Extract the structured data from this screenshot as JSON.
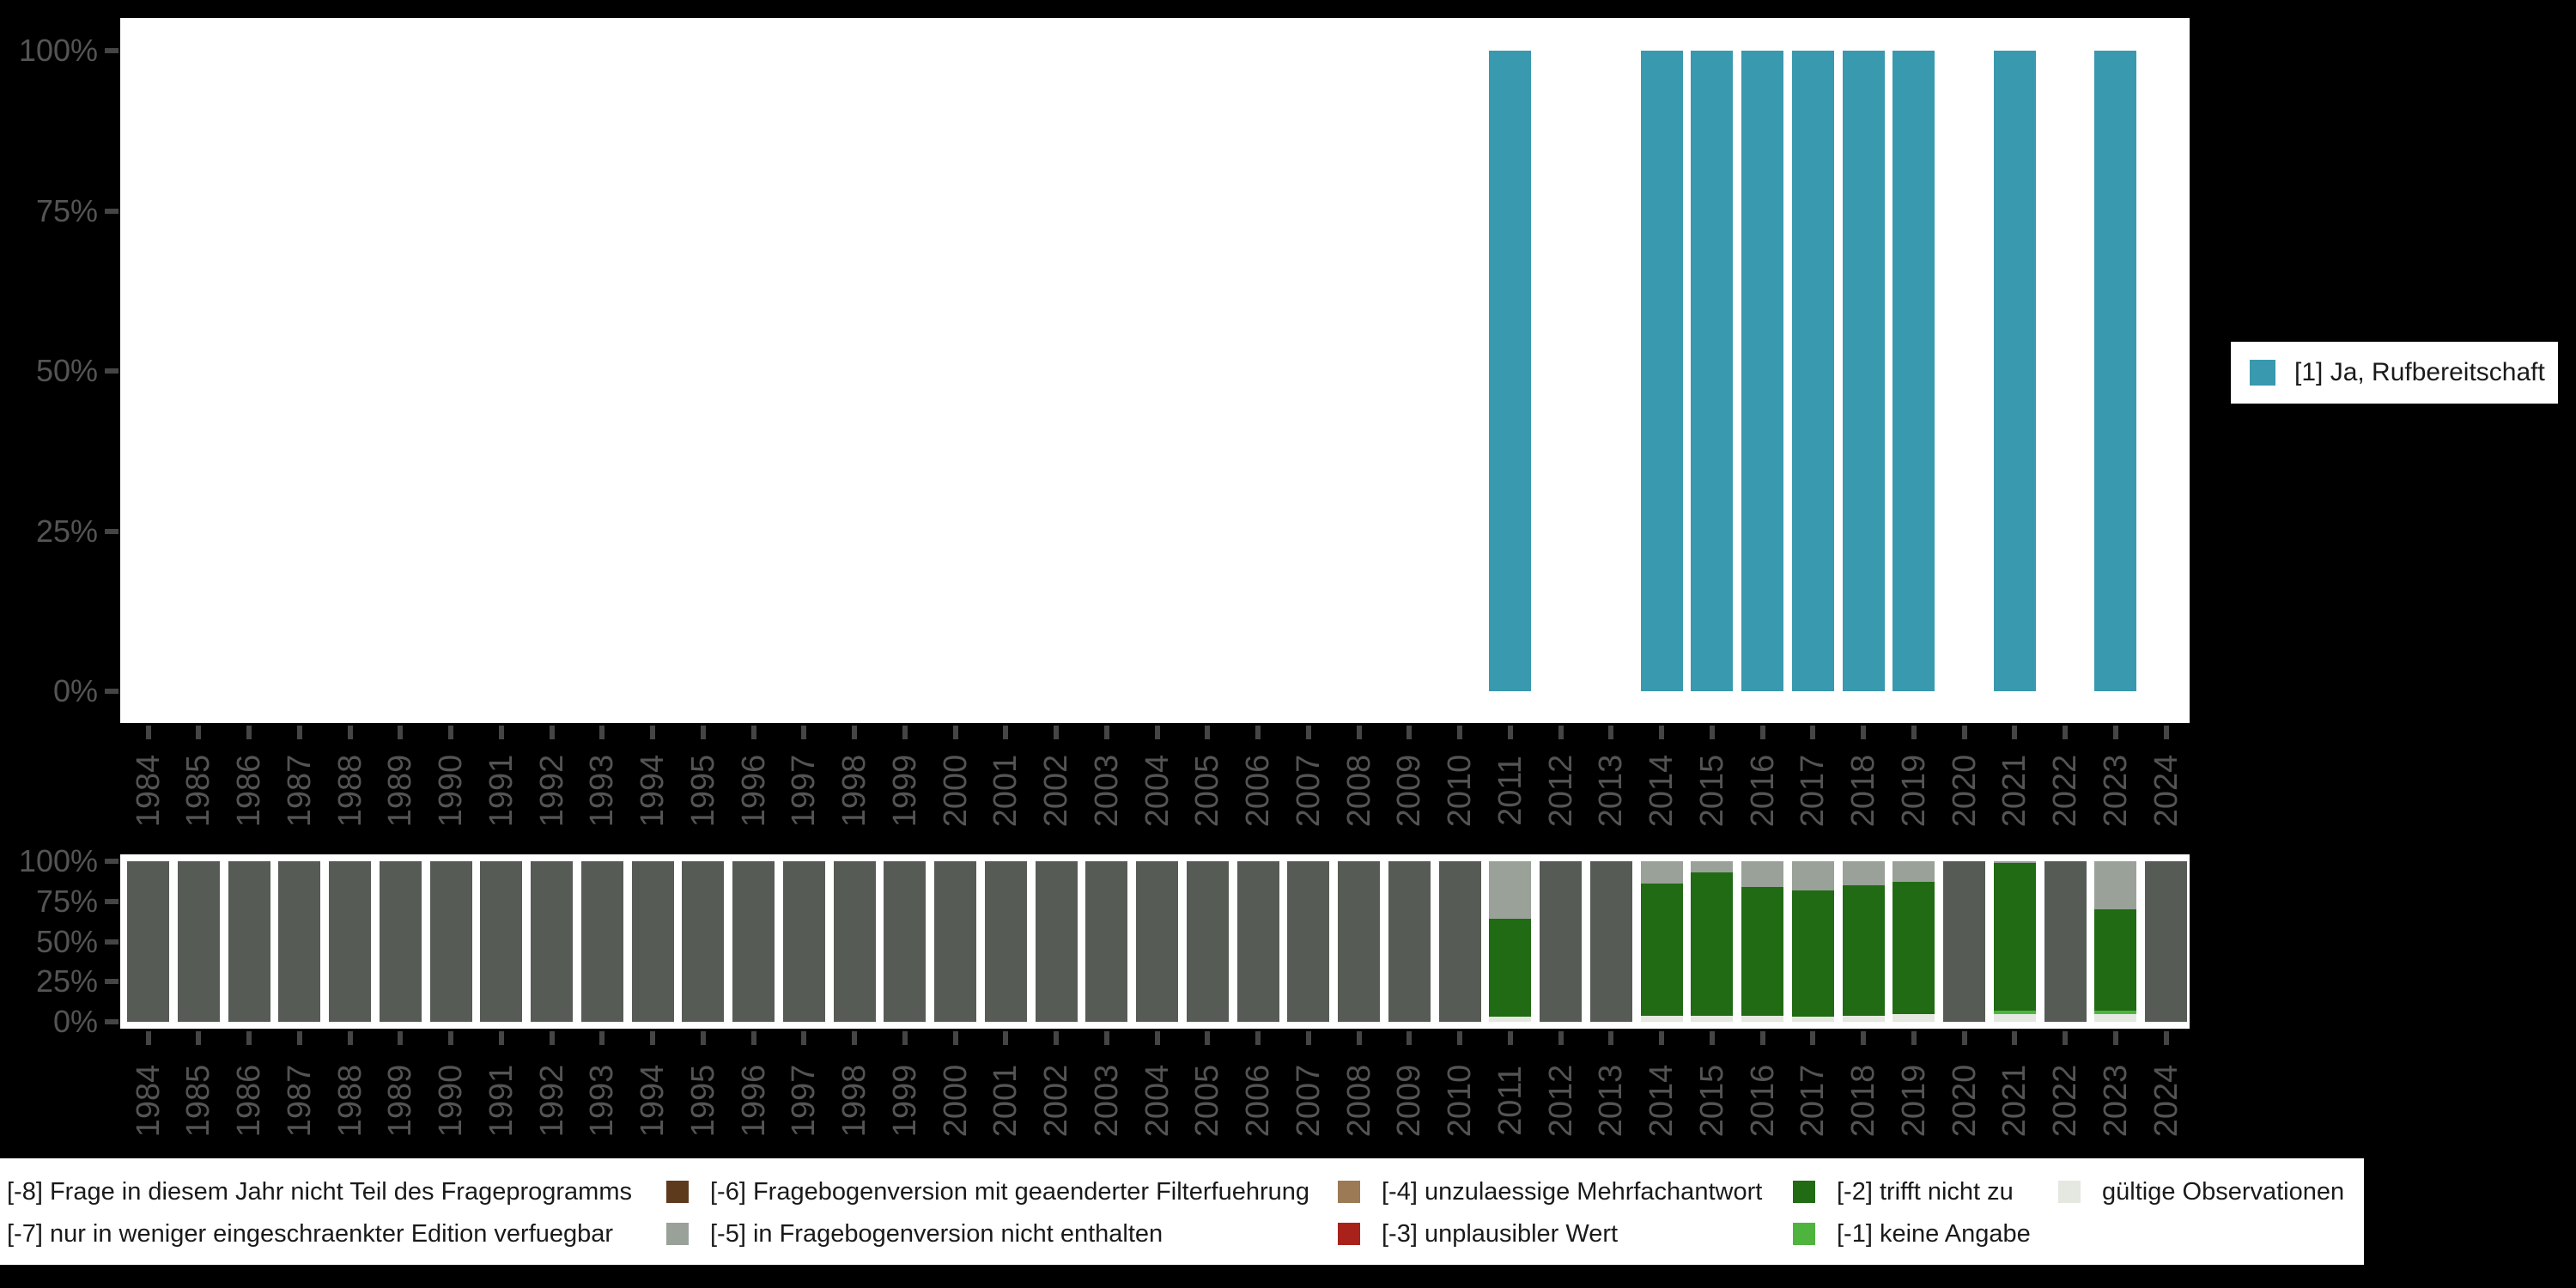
{
  "colors": {
    "background": "#000000",
    "plot_background": "#ffffff",
    "axis_text": "#545454",
    "tick": "#454545",
    "legend_text": "#1a1a1a",
    "answer_teal": "#3999ae",
    "m8_dark_gray": "#565c55",
    "m7_gray": "#99a199",
    "m6_dark_brown": "#5e3a1d",
    "m5_gray": "#99a199",
    "m4_tan": "#9b7a55",
    "m3_red": "#a8221b",
    "m2_dark_green": "#206b13",
    "m1_green": "#4fb43e",
    "valid_light": "#e4e8e1"
  },
  "years": [
    "1984",
    "1985",
    "1986",
    "1987",
    "1988",
    "1989",
    "1990",
    "1991",
    "1992",
    "1993",
    "1994",
    "1995",
    "1996",
    "1997",
    "1998",
    "1999",
    "2000",
    "2001",
    "2002",
    "2003",
    "2004",
    "2005",
    "2006",
    "2007",
    "2008",
    "2009",
    "2010",
    "2011",
    "2012",
    "2013",
    "2014",
    "2015",
    "2016",
    "2017",
    "2018",
    "2019",
    "2020",
    "2021",
    "2022",
    "2023",
    "2024"
  ],
  "top_chart": {
    "legend_label": "[1] Ja, Rufbereitschaft",
    "y_ticks": [
      "100%",
      "75%",
      "50%",
      "25%",
      "0%"
    ]
  },
  "bottom_chart": {
    "y_ticks": [
      "100%",
      "75%",
      "50%",
      "25%",
      "0%"
    ]
  },
  "missing_legend": {
    "items": [
      {
        "row": 0,
        "col": 0,
        "label": "[-8] Frage in diesem Jahr nicht Teil des Frageprogramms",
        "color": "#565c55",
        "swatch_visible": false
      },
      {
        "row": 1,
        "col": 0,
        "label": "[-7] nur in weniger eingeschraenkter Edition verfuegbar",
        "color": "#99a199",
        "swatch_visible": false
      },
      {
        "row": 0,
        "col": 1,
        "label": "[-6] Fragebogenversion mit geaenderter Filterfuehrung",
        "color": "#5e3a1d",
        "swatch_visible": true
      },
      {
        "row": 1,
        "col": 1,
        "label": "[-5] in Fragebogenversion nicht enthalten",
        "color": "#99a199",
        "swatch_visible": true
      },
      {
        "row": 0,
        "col": 2,
        "label": "[-4] unzulaessige Mehrfachantwort",
        "color": "#9b7a55",
        "swatch_visible": true
      },
      {
        "row": 1,
        "col": 2,
        "label": "[-3] unplausibler Wert",
        "color": "#a8221b",
        "swatch_visible": true
      },
      {
        "row": 0,
        "col": 3,
        "label": "[-2] trifft nicht zu",
        "color": "#206b13",
        "swatch_visible": true
      },
      {
        "row": 1,
        "col": 3,
        "label": "[-1] keine Angabe",
        "color": "#4fb43e",
        "swatch_visible": true
      },
      {
        "row": 0,
        "col": 4,
        "label": "gültige Observationen",
        "color": "#e4e8e1",
        "swatch_visible": true
      }
    ]
  },
  "chart_data": [
    {
      "type": "bar",
      "title": "",
      "xlabel": "",
      "ylabel": "",
      "ylim": [
        0,
        100
      ],
      "unit": "percent",
      "y_tick_labels": [
        "100%",
        "75%",
        "50%",
        "25%",
        "0%"
      ],
      "y_tick_values": [
        100,
        75,
        50,
        25,
        0
      ],
      "legend_position": "right",
      "grid": false,
      "categories": [
        "1984",
        "1985",
        "1986",
        "1987",
        "1988",
        "1989",
        "1990",
        "1991",
        "1992",
        "1993",
        "1994",
        "1995",
        "1996",
        "1997",
        "1998",
        "1999",
        "2000",
        "2001",
        "2002",
        "2003",
        "2004",
        "2005",
        "2006",
        "2007",
        "2008",
        "2009",
        "2010",
        "2011",
        "2012",
        "2013",
        "2014",
        "2015",
        "2016",
        "2017",
        "2018",
        "2019",
        "2020",
        "2021",
        "2022",
        "2023",
        "2024"
      ],
      "series": [
        {
          "name": "[1] Ja, Rufbereitschaft",
          "color": "#3999ae",
          "values": [
            0,
            0,
            0,
            0,
            0,
            0,
            0,
            0,
            0,
            0,
            0,
            0,
            0,
            0,
            0,
            0,
            0,
            0,
            0,
            0,
            0,
            0,
            0,
            0,
            0,
            0,
            0,
            100,
            0,
            0,
            100,
            100,
            100,
            100,
            100,
            100,
            0,
            100,
            0,
            100,
            0
          ]
        }
      ]
    },
    {
      "type": "bar",
      "title": "",
      "xlabel": "",
      "ylabel": "",
      "ylim": [
        0,
        100
      ],
      "unit": "percent",
      "stacked": true,
      "y_tick_labels": [
        "100%",
        "75%",
        "50%",
        "25%",
        "0%"
      ],
      "y_tick_values": [
        100,
        75,
        50,
        25,
        0
      ],
      "legend_position": "bottom",
      "grid": false,
      "categories": [
        "1984",
        "1985",
        "1986",
        "1987",
        "1988",
        "1989",
        "1990",
        "1991",
        "1992",
        "1993",
        "1994",
        "1995",
        "1996",
        "1997",
        "1998",
        "1999",
        "2000",
        "2001",
        "2002",
        "2003",
        "2004",
        "2005",
        "2006",
        "2007",
        "2008",
        "2009",
        "2010",
        "2011",
        "2012",
        "2013",
        "2014",
        "2015",
        "2016",
        "2017",
        "2018",
        "2019",
        "2020",
        "2021",
        "2022",
        "2023",
        "2024"
      ],
      "series": [
        {
          "name": "gültige Observationen",
          "color": "#e4e8e1",
          "values": [
            0,
            0,
            0,
            0,
            0,
            0,
            0,
            0,
            0,
            0,
            0,
            0,
            0,
            0,
            0,
            0,
            0,
            0,
            0,
            0,
            0,
            0,
            0,
            0,
            0,
            0,
            0,
            3,
            0,
            0,
            4,
            4,
            4,
            3,
            4,
            5,
            0,
            5,
            0,
            5,
            0
          ]
        },
        {
          "name": "[-1] keine Angabe",
          "color": "#4fb43e",
          "values": [
            0,
            0,
            0,
            0,
            0,
            0,
            0,
            0,
            0,
            0,
            0,
            0,
            0,
            0,
            0,
            0,
            0,
            0,
            0,
            0,
            0,
            0,
            0,
            0,
            0,
            0,
            0,
            0,
            0,
            0,
            0,
            0,
            0,
            0,
            0,
            0,
            0,
            2,
            0,
            2,
            0
          ]
        },
        {
          "name": "[-2] trifft nicht zu",
          "color": "#206b13",
          "values": [
            0,
            0,
            0,
            0,
            0,
            0,
            0,
            0,
            0,
            0,
            0,
            0,
            0,
            0,
            0,
            0,
            0,
            0,
            0,
            0,
            0,
            0,
            0,
            0,
            0,
            0,
            0,
            61,
            0,
            0,
            82,
            89,
            80,
            79,
            81,
            82,
            0,
            92,
            0,
            63,
            0
          ]
        },
        {
          "name": "[-5] in Fragebogenversion nicht enthalten",
          "color": "#99a199",
          "values": [
            0,
            0,
            0,
            0,
            0,
            0,
            0,
            0,
            0,
            0,
            0,
            0,
            0,
            0,
            0,
            0,
            0,
            0,
            0,
            0,
            0,
            0,
            0,
            0,
            0,
            0,
            0,
            36,
            0,
            0,
            14,
            7,
            16,
            18,
            15,
            13,
            0,
            1,
            0,
            30,
            0
          ]
        },
        {
          "name": "[-8] Frage in diesem Jahr nicht Teil des Frageprogramms",
          "color": "#565c55",
          "values": [
            100,
            100,
            100,
            100,
            100,
            100,
            100,
            100,
            100,
            100,
            100,
            100,
            100,
            100,
            100,
            100,
            100,
            100,
            100,
            100,
            100,
            100,
            100,
            100,
            100,
            100,
            100,
            0,
            100,
            100,
            0,
            0,
            0,
            0,
            0,
            0,
            100,
            0,
            100,
            0,
            100
          ]
        }
      ]
    }
  ]
}
